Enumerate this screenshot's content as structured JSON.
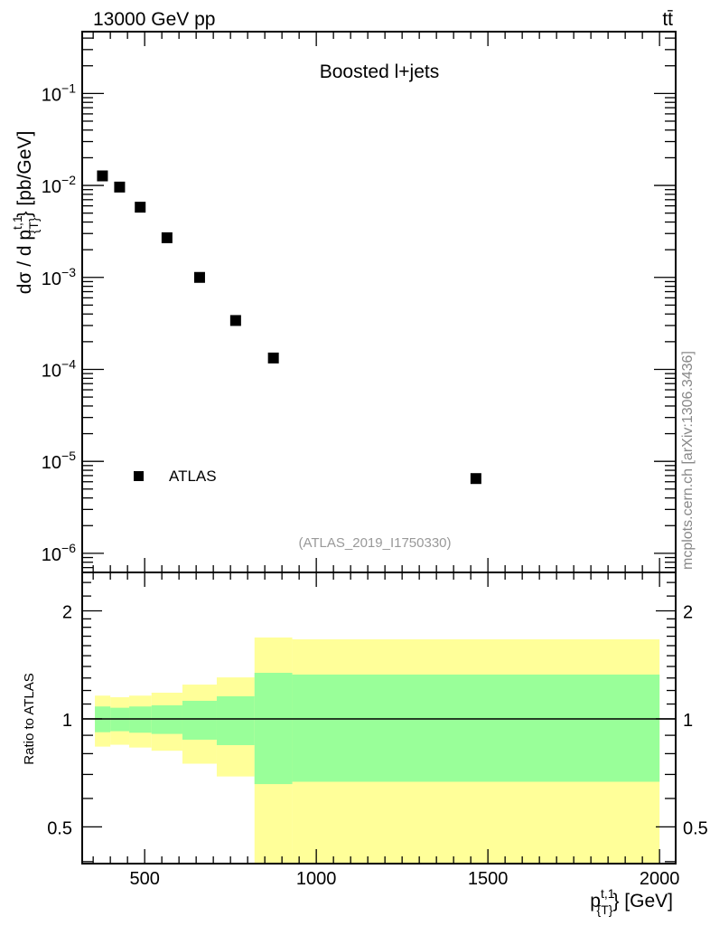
{
  "chart_data": [
    {
      "type": "scatter",
      "title": "Boosted l+jets",
      "header_left": "13000 GeV pp",
      "header_right": "tt̄",
      "xlabel": "p_{T}^{t,1} [GeV]",
      "xlabel_main": "p",
      "xlabel_sup": "t,1",
      "xlabel_sub": "{T}",
      "xlabel_unit": "} [GeV]",
      "ylabel": "dσ / d p_{T}^{t,1}} [pb/GeV]",
      "ylabel_pre": "dσ / d p",
      "ylabel_sup": "t,1",
      "ylabel_sub": "{T}",
      "ylabel_post": "} [pb/GeV]",
      "yscale": "log",
      "xlim": [
        318,
        2047
      ],
      "ylim": [
        6.2e-07,
        0.47
      ],
      "ytick_labels": [
        {
          "base": "10",
          "exp": "−1",
          "value": 0.1
        },
        {
          "base": "10",
          "exp": "−2",
          "value": 0.01
        },
        {
          "base": "10",
          "exp": "−3",
          "value": 0.001
        },
        {
          "base": "10",
          "exp": "−4",
          "value": 0.0001
        },
        {
          "base": "10",
          "exp": "−5",
          "value": 1e-05
        },
        {
          "base": "10",
          "exp": "−6",
          "value": 1e-06
        }
      ],
      "bin_edges": [
        355,
        400,
        455,
        520,
        610,
        710,
        820,
        930,
        2000
      ],
      "series": [
        {
          "name": "ATLAS",
          "x": [
            377,
            427,
            487,
            565,
            660,
            765,
            875,
            1465
          ],
          "y": [
            0.0127,
            0.0096,
            0.0058,
            0.0027,
            0.001,
            0.00034,
            0.000133,
            6.5e-06
          ]
        }
      ],
      "legend": {
        "label": "ATLAS",
        "placement": "bottom-left"
      },
      "annotation": "(ATLAS_2019_I1750330)",
      "side_label": "mcplots.cern.ch [arXiv:1306.3436]"
    },
    {
      "type": "area",
      "ylabel": "Ratio to ATLAS",
      "yscale": "log",
      "xlim": [
        318,
        2047
      ],
      "ylim": [
        0.395,
        2.56
      ],
      "xticks": [
        500,
        1000,
        1500,
        2000
      ],
      "xtick_labels": [
        "500",
        "1000",
        "1500",
        "2000"
      ],
      "yticks": [
        0.5,
        1,
        2
      ],
      "ytick_labels": [
        "0.5",
        "1",
        "2"
      ],
      "bin_edges": [
        355,
        400,
        455,
        520,
        610,
        710,
        820,
        930,
        2000
      ],
      "reference_line": 1,
      "bands": [
        {
          "name": "stat",
          "color": "#99ff99",
          "upper": [
            1.083,
            1.074,
            1.083,
            1.091,
            1.123,
            1.156,
            1.344,
            1.329
          ],
          "lower": [
            0.918,
            0.924,
            0.915,
            0.908,
            0.875,
            0.845,
            0.658,
            0.668
          ]
        },
        {
          "name": "total",
          "color": "#ffff99",
          "upper": [
            1.161,
            1.149,
            1.161,
            1.183,
            1.246,
            1.305,
            1.686,
            1.666
          ],
          "lower": [
            0.837,
            0.847,
            0.832,
            0.815,
            0.75,
            0.691,
            0.35,
            0.35
          ]
        }
      ]
    }
  ]
}
